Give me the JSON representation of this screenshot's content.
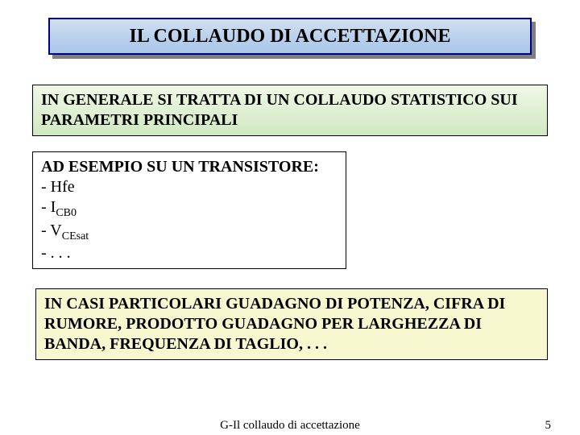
{
  "title": "IL COLLAUDO DI ACCETTAZIONE",
  "green_box": "IN GENERALE SI TRATTA DI UN COLLAUDO STATISTICO SUI PARAMETRI PRINCIPALI",
  "white_box": {
    "header": "AD ESEMPIO SU UN TRANSISTORE:",
    "items": {
      "i0": "- Hfe",
      "i1_pre": "- I",
      "i1_sub": "CB0",
      "i2_pre": "- V",
      "i2_sub": "CEsat",
      "i3": "- . . ."
    }
  },
  "yellow_box": "IN CASI PARTICOLARI GUADAGNO DI POTENZA, CIFRA DI RUMORE, PRODOTTO GUADAGNO PER LARGHEZZA DI BANDA, FREQUENZA DI TAGLIO, . . .",
  "footer": {
    "center": "G-Il collaudo di accettazione",
    "page": "5"
  },
  "colors": {
    "title_border": "#000080",
    "title_grad_top": "#d0e0f0",
    "title_grad_bottom": "#a8c4e8",
    "shadow": "#808080",
    "green_top": "#f0f8e8",
    "green_bottom": "#d0e8c0",
    "yellow": "#f8f8d0",
    "border": "#000000",
    "text": "#000000",
    "bg": "#ffffff"
  }
}
